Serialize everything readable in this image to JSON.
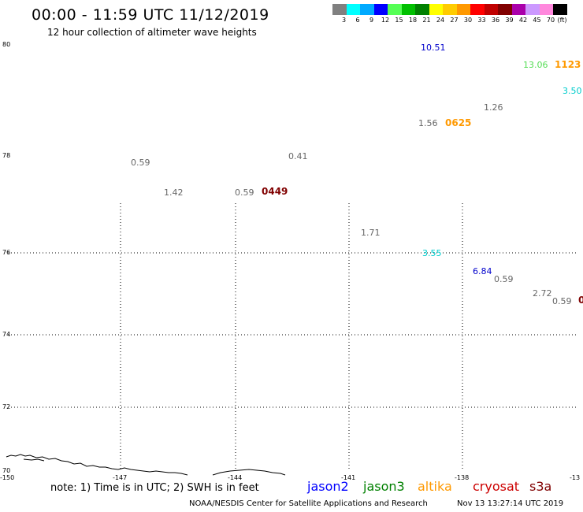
{
  "title": "00:00 - 11:59 UTC 11/12/2019",
  "subtitle": "12 hour collection of altimeter wave heights",
  "colorbar": {
    "colors": [
      "#808080",
      "#00ffff",
      "#00aaff",
      "#0000ff",
      "#55ff55",
      "#00c000",
      "#008000",
      "#ffff00",
      "#ffcc00",
      "#ff9900",
      "#ff0000",
      "#c00000",
      "#800000",
      "#aa00aa",
      "#cc99ff",
      "#ff88dd",
      "#000000"
    ],
    "labels": [
      "3",
      "6",
      "9",
      "12",
      "15",
      "18",
      "21",
      "24",
      "27",
      "30",
      "33",
      "36",
      "39",
      "42",
      "45",
      "70",
      "(ft)"
    ]
  },
  "map": {
    "lat_labels": [
      "80",
      "78",
      "76",
      "74",
      "72",
      "70"
    ],
    "lon_labels": [
      "-150",
      "-147",
      "-144",
      "-141",
      "-138",
      "-13"
    ]
  },
  "observations": [
    {
      "text": "10.51",
      "color": "#0000cc"
    },
    {
      "text": "13.06",
      "color": "#55dd55"
    },
    {
      "text": "1123",
      "color": "#ff9900",
      "bold": true
    },
    {
      "text": "3.50",
      "color": "#00cccc"
    },
    {
      "text": "1.26",
      "color": "#666666"
    },
    {
      "text": "1.56",
      "color": "#666666"
    },
    {
      "text": "0625",
      "color": "#ff9900",
      "bold": true
    },
    {
      "text": "0.59",
      "color": "#666666"
    },
    {
      "text": "0.41",
      "color": "#666666"
    },
    {
      "text": "1.42",
      "color": "#666666"
    },
    {
      "text": "0.59",
      "color": "#666666"
    },
    {
      "text": "0449",
      "color": "#800000",
      "bold": true
    },
    {
      "text": "1.71",
      "color": "#666666"
    },
    {
      "text": "3.55",
      "color": "#00cccc"
    },
    {
      "text": "6.84",
      "color": "#0000cc"
    },
    {
      "text": "0.59",
      "color": "#666666"
    },
    {
      "text": "2.72",
      "color": "#666666"
    },
    {
      "text": "0.59",
      "color": "#666666"
    },
    {
      "text": "0",
      "color": "#800000",
      "bold": true
    }
  ],
  "note": "note: 1) Time is in UTC; 2) SWH is in feet",
  "satellites": [
    {
      "name": "jason2",
      "color": "#0000ff"
    },
    {
      "name": "jason3",
      "color": "#008000"
    },
    {
      "name": "altika",
      "color": "#ff9900"
    },
    {
      "name": "cryosat",
      "color": "#cc0000"
    },
    {
      "name": "s3a",
      "color": "#800000"
    }
  ],
  "credit": "NOAA/NESDIS Center for Satellite Applications and Research",
  "timestamp": "Nov 13 13:27:14 UTC 2019"
}
